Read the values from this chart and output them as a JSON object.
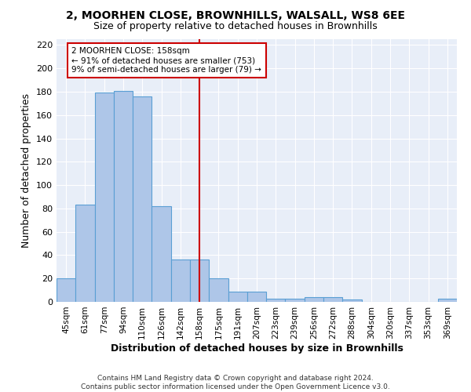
{
  "title1": "2, MOORHEN CLOSE, BROWNHILLS, WALSALL, WS8 6EE",
  "title2": "Size of property relative to detached houses in Brownhills",
  "xlabel": "Distribution of detached houses by size in Brownhills",
  "ylabel": "Number of detached properties",
  "categories": [
    "45sqm",
    "61sqm",
    "77sqm",
    "94sqm",
    "110sqm",
    "126sqm",
    "142sqm",
    "158sqm",
    "175sqm",
    "191sqm",
    "207sqm",
    "223sqm",
    "239sqm",
    "256sqm",
    "272sqm",
    "288sqm",
    "304sqm",
    "320sqm",
    "337sqm",
    "353sqm",
    "369sqm"
  ],
  "values": [
    20,
    83,
    179,
    181,
    176,
    82,
    36,
    36,
    20,
    9,
    9,
    3,
    3,
    4,
    4,
    2,
    0,
    0,
    0,
    0,
    3
  ],
  "bar_color": "#aec6e8",
  "bar_edge_color": "#5a9fd4",
  "vline_x": 7,
  "vline_color": "#cc0000",
  "annotation_line1": "2 MOORHEN CLOSE: 158sqm",
  "annotation_line2": "← 91% of detached houses are smaller (753)",
  "annotation_line3": "9% of semi-detached houses are larger (79) →",
  "ylim": [
    0,
    225
  ],
  "yticks": [
    0,
    20,
    40,
    60,
    80,
    100,
    120,
    140,
    160,
    180,
    200,
    220
  ],
  "bg_color": "#e8eef8",
  "footer": "Contains HM Land Registry data © Crown copyright and database right 2024.\nContains public sector information licensed under the Open Government Licence v3.0."
}
